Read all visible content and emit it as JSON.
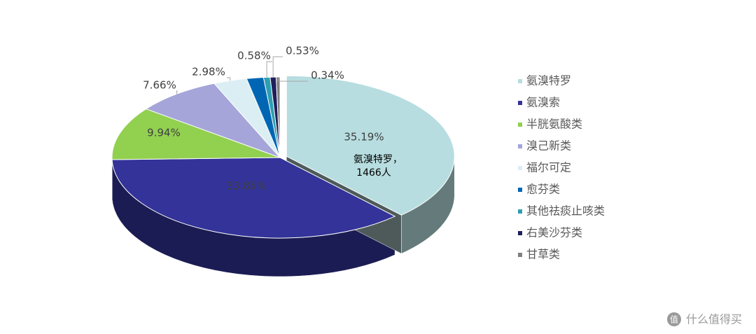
{
  "chart_data": {
    "type": "pie3d",
    "categories": [
      "氨溴特罗",
      "氨溴索",
      "半胱氨酸类",
      "溴己新类",
      "福尔可定",
      "愈芬类",
      "其他祛痰止咳类",
      "右美沙芬类",
      "甘草类"
    ],
    "values": [
      35.19,
      33.85,
      9.94,
      7.66,
      2.98,
      1.5,
      0.58,
      0.53,
      0.34
    ],
    "value_labels": [
      "35.19%",
      "33.85%",
      "9.94%",
      "7.66%",
      "2.98%",
      null,
      "0.58%",
      "0.53%",
      "0.34%"
    ],
    "colors": [
      "#b7dde0",
      "#333399",
      "#92d050",
      "#a5a5d9",
      "#dbeef3",
      "#0066b3",
      "#2e9fb0",
      "#1f1f5c",
      "#7f7f7f"
    ],
    "exploded": [
      0
    ],
    "legend": "right",
    "annotation": {
      "lines": [
        "氨溴特罗，",
        "1466人"
      ]
    },
    "watermark_icon": "值",
    "watermark": "什么值得买"
  }
}
